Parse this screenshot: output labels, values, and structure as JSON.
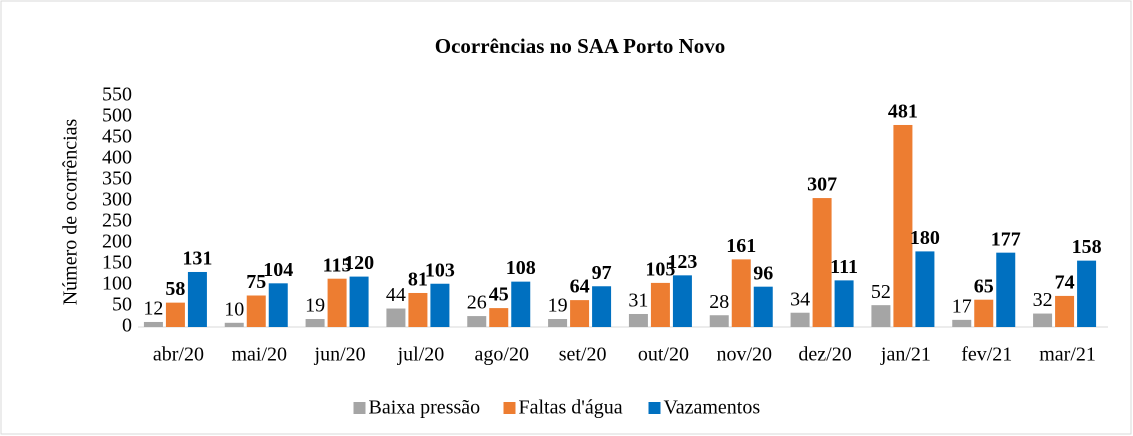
{
  "chart_data": {
    "type": "bar",
    "title": "Ocorrências no SAA Porto Novo",
    "y_label": "Número de ocorrências",
    "categories": [
      "abr/20",
      "mai/20",
      "jun/20",
      "jul/20",
      "ago/20",
      "set/20",
      "out/20",
      "nov/20",
      "dez/20",
      "jan/21",
      "fev/21",
      "mar/21"
    ],
    "series": [
      {
        "name": "Baixa pressão",
        "color": "#a5a5a5",
        "values": [
          12,
          10,
          19,
          44,
          26,
          19,
          31,
          28,
          34,
          52,
          17,
          32
        ]
      },
      {
        "name": "Faltas d'água",
        "color": "#ed7d31",
        "values": [
          58,
          75,
          115,
          81,
          45,
          64,
          105,
          161,
          307,
          481,
          65,
          74
        ]
      },
      {
        "name": "Vazamentos",
        "color": "#0070c0",
        "values": [
          131,
          104,
          120,
          103,
          108,
          97,
          123,
          96,
          111,
          180,
          177,
          158
        ]
      }
    ],
    "ylim": [
      0,
      550
    ],
    "yticks": [
      0,
      50,
      100,
      150,
      200,
      250,
      300,
      350,
      400,
      450,
      500,
      550
    ],
    "grid": false,
    "legend": "bottom"
  }
}
